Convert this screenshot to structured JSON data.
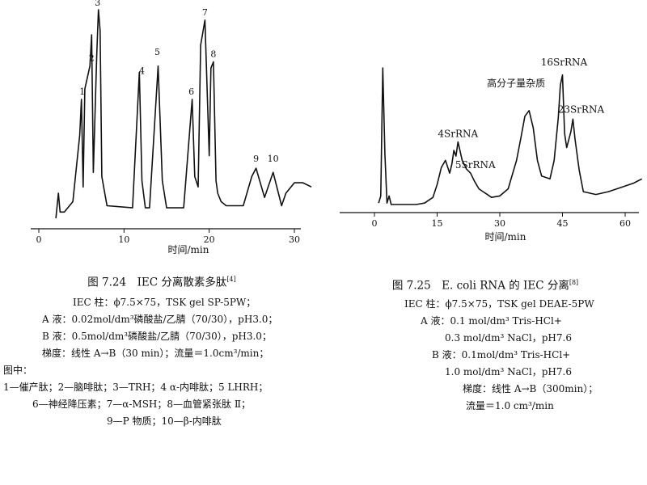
{
  "colors": {
    "ink": "#111111",
    "background": "#ffffff"
  },
  "chart_data": [
    {
      "type": "line",
      "title": "",
      "xlabel": "时间/min",
      "ylabel": "",
      "xlim": [
        0,
        30
      ],
      "xticks": [
        0,
        10,
        20,
        30
      ],
      "ylim": [
        0,
        100
      ],
      "grid": false,
      "series": [
        {
          "x": [
            2.0,
            2.3,
            2.5,
            3.0,
            4.0,
            4.8,
            5.0,
            5.2,
            5.4,
            6.0,
            6.2,
            6.4,
            6.8,
            7.0,
            7.2,
            7.4,
            8.0,
            11.0,
            11.8,
            12.1,
            12.5,
            13.0,
            14.0,
            14.5,
            15.0,
            15.5,
            17.0,
            18.0,
            18.3,
            18.7,
            19.0,
            19.5,
            20.0,
            20.2,
            20.5,
            20.8,
            21.0,
            21.4,
            22.0,
            24.0,
            25.0,
            25.5,
            26.5,
            27.5,
            28.5,
            29.0,
            30.0,
            31.0,
            32.0
          ],
          "y": [
            0,
            12,
            3,
            3,
            8,
            40,
            57,
            15,
            62,
            73,
            88,
            22,
            78,
            100,
            90,
            20,
            6,
            5,
            70,
            18,
            5,
            5,
            73,
            18,
            5,
            5,
            5,
            57,
            20,
            15,
            83,
            95,
            30,
            72,
            75,
            18,
            12,
            8,
            6,
            6,
            20,
            24,
            10,
            22,
            6,
            12,
            17,
            17,
            15
          ]
        }
      ],
      "peak_labels": [
        {
          "label": "1",
          "x": 5.0,
          "y": 57
        },
        {
          "label": "2",
          "x": 6.2,
          "y": 73
        },
        {
          "label": "3",
          "x": 7.0,
          "y": 100
        },
        {
          "label": "4",
          "x": 12.1,
          "y": 66
        },
        {
          "label": "5",
          "x": 14.0,
          "y": 76
        },
        {
          "label": "6",
          "x": 18.0,
          "y": 57
        },
        {
          "label": "7",
          "x": 19.5,
          "y": 95
        },
        {
          "label": "8",
          "x": 20.5,
          "y": 75
        },
        {
          "label": "9",
          "x": 25.5,
          "y": 24
        },
        {
          "label": "10",
          "x": 27.5,
          "y": 24
        }
      ]
    },
    {
      "type": "line",
      "title": "",
      "xlabel": "时间/min",
      "ylabel": "",
      "xlim": [
        0,
        60
      ],
      "xticks": [
        0,
        15,
        30,
        45,
        60
      ],
      "ylim": [
        0,
        100
      ],
      "grid": false,
      "series": [
        {
          "x": [
            1.0,
            1.5,
            2.0,
            2.5,
            3.0,
            3.5,
            4.0,
            5.0,
            10.0,
            12.0,
            14.0,
            15.0,
            16.0,
            17.0,
            18.0,
            18.5,
            19.0,
            19.5,
            20.0,
            21.0,
            22.0,
            23.0,
            24.0,
            25.0,
            26.0,
            27.0,
            28.0,
            30.0,
            32.0,
            34.0,
            35.0,
            36.0,
            37.0,
            38.0,
            39.0,
            40.0,
            42.0,
            43.0,
            44.0,
            44.5,
            45.0,
            45.5,
            46.0,
            47.0,
            47.5,
            48.0,
            49.0,
            50.0,
            53.0,
            56.0,
            58.0,
            60.0,
            62.0,
            64.0
          ],
          "y": [
            5,
            10,
            100,
            40,
            5,
            10,
            4,
            4,
            4,
            5,
            9,
            18,
            30,
            35,
            26,
            32,
            42,
            38,
            48,
            35,
            29,
            26,
            20,
            15,
            13,
            11,
            9,
            10,
            15,
            35,
            50,
            66,
            70,
            58,
            35,
            24,
            22,
            35,
            65,
            88,
            95,
            54,
            44,
            55,
            64,
            50,
            28,
            13,
            11,
            13,
            15,
            17,
            19,
            22
          ]
        }
      ],
      "peak_labels": [
        {
          "label": "4SrRNA",
          "x": 20.0,
          "y": 48
        },
        {
          "label": "5SrRNA",
          "x": 23.0,
          "y": 26
        },
        {
          "label": "高分子量杂质",
          "x": 37.0,
          "y": 70
        },
        {
          "label": "16SrRNA",
          "x": 45.0,
          "y": 95
        },
        {
          "label": "23SrRNA",
          "x": 47.5,
          "y": 64
        }
      ]
    }
  ],
  "left_caption": {
    "title": "图 7.24　IEC 分离散素多肽",
    "ref": "[4]",
    "lines": [
      "IEC 柱：ϕ7.5×75，TSK gel SP-5PW；",
      "A 液：0.02mol/dm³磷酸盐/乙腈（70/30），pH3.0；",
      "B 液：0.5mol/dm³磷酸盐/乙腈（70/30），pH3.0；",
      "梯度：线性 A→B（30 min）；流量＝1.0cm³/min；",
      "图中：",
      "1—催产肽；2—脑啡肽；3—TRH；4 α-内啡肽；5 LHRH；",
      "6—神经降压素；7—α-MSH；8—血管紧张肽 Ⅱ；",
      "9—P 物质；10—β-内啡肽"
    ]
  },
  "right_caption": {
    "title": "图 7.25　E. coli RNA 的 IEC 分离",
    "ref": "[8]",
    "lines": [
      "IEC 柱：ϕ7.5×75，TSK gel DEAE-5PW",
      "A 液：0.1 mol/dm³ Tris-HCl+",
      "0.3 mol/dm³ NaCl，pH7.6",
      "B 液：0.1mol/dm³ Tris-HCl+",
      "1.0 mol/dm³ NaCl，pH7.6",
      "梯度：线性 A→B（300min）；",
      "流量＝1.0 cm³/min"
    ]
  }
}
